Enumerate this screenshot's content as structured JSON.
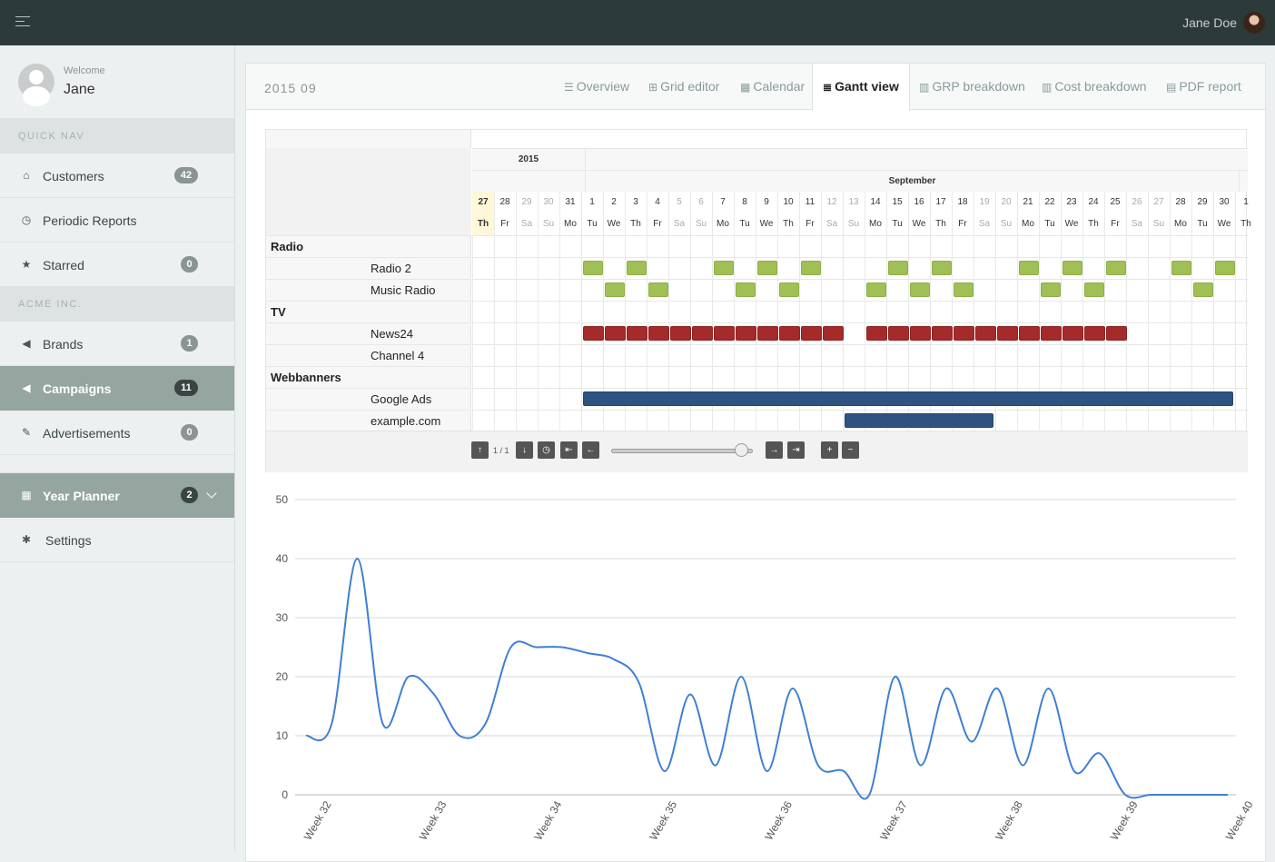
{
  "topbar": {
    "user_name": "Jane Doe"
  },
  "sidebar": {
    "welcome_label": "Welcome",
    "welcome_name": "Jane",
    "sections": [
      {
        "header": "QUICK NAV",
        "items": [
          {
            "label": "Customers",
            "icon": "home-icon",
            "badge": "42"
          },
          {
            "label": "Periodic Reports",
            "icon": "clock-icon",
            "badge": null
          },
          {
            "label": "Starred",
            "icon": "star-icon",
            "badge": "0"
          }
        ]
      },
      {
        "header": "ACME INC.",
        "items": [
          {
            "label": "Brands",
            "icon": "bullhorn-icon",
            "badge": "1"
          },
          {
            "label": "Campaigns",
            "icon": "bullhorn-icon",
            "badge": "11",
            "active": true
          },
          {
            "label": "Advertisements",
            "icon": "paperclip-icon",
            "badge": "0"
          }
        ]
      }
    ],
    "year_planner": {
      "label": "Year Planner",
      "badge": "2"
    },
    "settings": {
      "label": "Settings"
    }
  },
  "panel": {
    "period": "2015 09",
    "tabs": [
      {
        "label": "Overview",
        "icon": "list-icon"
      },
      {
        "label": "Grid editor",
        "icon": "table-icon"
      },
      {
        "label": "Calendar",
        "icon": "calendar-icon"
      },
      {
        "label": "Gantt view",
        "icon": "gantt-icon",
        "active": true
      },
      {
        "label": "GRP breakdown",
        "icon": "bar-chart-icon"
      },
      {
        "label": "Cost breakdown",
        "icon": "bar-chart-icon"
      },
      {
        "label": "PDF report",
        "icon": "file-icon"
      }
    ]
  },
  "gantt": {
    "year": "2015",
    "month": "September",
    "days": [
      {
        "n": "27",
        "d": "Th",
        "today": true
      },
      {
        "n": "28",
        "d": "Fr"
      },
      {
        "n": "29",
        "d": "Sa",
        "we": true
      },
      {
        "n": "30",
        "d": "Su",
        "we": true
      },
      {
        "n": "31",
        "d": "Mo"
      },
      {
        "n": "1",
        "d": "Tu"
      },
      {
        "n": "2",
        "d": "We"
      },
      {
        "n": "3",
        "d": "Th"
      },
      {
        "n": "4",
        "d": "Fr"
      },
      {
        "n": "5",
        "d": "Sa",
        "we": true
      },
      {
        "n": "6",
        "d": "Su",
        "we": true
      },
      {
        "n": "7",
        "d": "Mo"
      },
      {
        "n": "8",
        "d": "Tu"
      },
      {
        "n": "9",
        "d": "We"
      },
      {
        "n": "10",
        "d": "Th"
      },
      {
        "n": "11",
        "d": "Fr"
      },
      {
        "n": "12",
        "d": "Sa",
        "we": true
      },
      {
        "n": "13",
        "d": "Su",
        "we": true
      },
      {
        "n": "14",
        "d": "Mo"
      },
      {
        "n": "15",
        "d": "Tu"
      },
      {
        "n": "16",
        "d": "We"
      },
      {
        "n": "17",
        "d": "Th"
      },
      {
        "n": "18",
        "d": "Fr"
      },
      {
        "n": "19",
        "d": "Sa",
        "we": true
      },
      {
        "n": "20",
        "d": "Su",
        "we": true
      },
      {
        "n": "21",
        "d": "Mo"
      },
      {
        "n": "22",
        "d": "Tu"
      },
      {
        "n": "23",
        "d": "We"
      },
      {
        "n": "24",
        "d": "Th"
      },
      {
        "n": "25",
        "d": "Fr"
      },
      {
        "n": "26",
        "d": "Sa",
        "we": true
      },
      {
        "n": "27",
        "d": "Su",
        "we": true
      },
      {
        "n": "28",
        "d": "Mo"
      },
      {
        "n": "29",
        "d": "Tu"
      },
      {
        "n": "30",
        "d": "We"
      },
      {
        "n": "1",
        "d": "Th"
      }
    ],
    "rows": [
      {
        "label": "Radio",
        "group": true
      },
      {
        "label": "Radio 2",
        "color": "green",
        "spots": [
          5,
          7,
          11,
          13,
          15,
          19,
          21,
          25,
          27,
          29,
          32,
          34
        ]
      },
      {
        "label": "Music Radio",
        "color": "green",
        "spots": [
          6,
          8,
          12,
          14,
          18,
          20,
          22,
          26,
          28,
          33
        ]
      },
      {
        "label": "TV",
        "group": true
      },
      {
        "label": "News24",
        "color": "red",
        "spots": [
          5,
          6,
          7,
          8,
          9,
          10,
          11,
          12,
          13,
          14,
          15,
          16,
          18,
          19,
          20,
          21,
          22,
          23,
          24,
          25,
          26,
          27,
          28,
          29
        ]
      },
      {
        "label": "Channel 4",
        "spots": []
      },
      {
        "label": "Webbanners",
        "group": true
      },
      {
        "label": "Google Ads",
        "color": "blue",
        "range": [
          5,
          34
        ]
      },
      {
        "label": "example.com",
        "color": "blue",
        "range": [
          17,
          23
        ]
      }
    ],
    "pager": "1 / 1",
    "controls": {
      "up": "↑",
      "down": "↓",
      "now": "◷",
      "first": "⇤",
      "prev": "←",
      "next": "→",
      "last": "⇥",
      "zoom_in": "+",
      "zoom_out": "−"
    },
    "zoom_level": 0.92
  },
  "chart_data": {
    "type": "line",
    "x": [
      "Week 32",
      "Week 32",
      "Week 32",
      "Week 32",
      "Week 32",
      "Week 32",
      "Week 33",
      "Week 33",
      "Week 33",
      "Week 33",
      "Week 33",
      "Week 34",
      "Week 35",
      "Week 36",
      "Week 36",
      "Week 36",
      "Week 36",
      "Week 36",
      "Week 37",
      "Week 37",
      "Week 37",
      "Week 37",
      "Week 37",
      "Week 37",
      "Week 38",
      "Week 38",
      "Week 38",
      "Week 38",
      "Week 38",
      "Week 38",
      "Week 39",
      "Week 39",
      "Week 39",
      "Week 39",
      "Week 39",
      "Week 40",
      "Week 40"
    ],
    "series": [
      {
        "values": [
          10,
          12,
          40,
          12,
          20,
          17,
          10,
          12,
          25,
          25,
          25,
          24,
          23,
          19,
          4,
          17,
          5,
          20,
          4,
          18,
          5,
          4,
          0,
          20,
          5,
          18,
          9,
          18,
          5,
          18,
          4,
          7,
          0,
          0,
          0,
          0,
          0
        ]
      }
    ],
    "x_tick_labels": [
      "Week 32",
      "Week 33",
      "Week 34",
      "Week 35",
      "Week 36",
      "Week 37",
      "Week 38",
      "Week 39",
      "Week 40"
    ],
    "y_ticks": [
      0,
      10,
      20,
      30,
      40,
      50
    ],
    "ylim": [
      0,
      50
    ],
    "grid": true,
    "legend": "none",
    "line_color": "#3f7fd4"
  }
}
